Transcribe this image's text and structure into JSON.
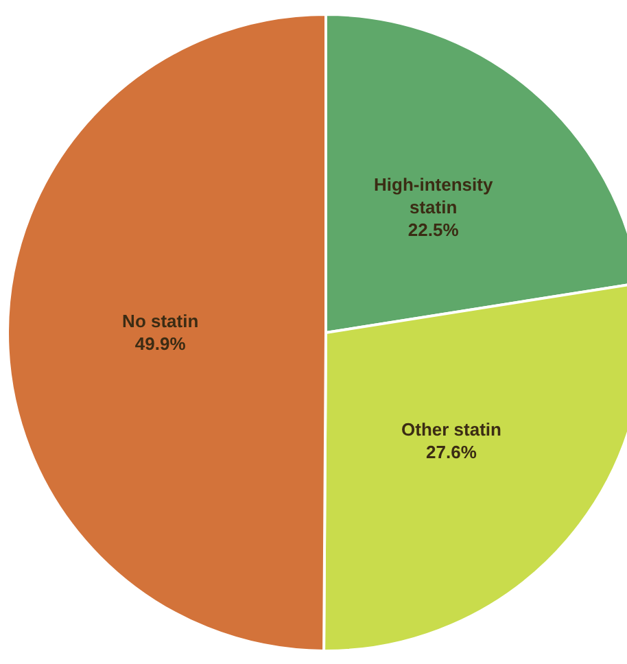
{
  "chart_data": {
    "type": "pie",
    "categories": [
      "High-intensity statin",
      "Other statin",
      "No statin"
    ],
    "values": [
      22.5,
      27.6,
      49.9
    ],
    "value_labels": [
      "22.5%",
      "27.6%",
      "49.9%"
    ],
    "colors": [
      "#5fa86a",
      "#c9dc4c",
      "#d3733a"
    ],
    "legend": false
  }
}
